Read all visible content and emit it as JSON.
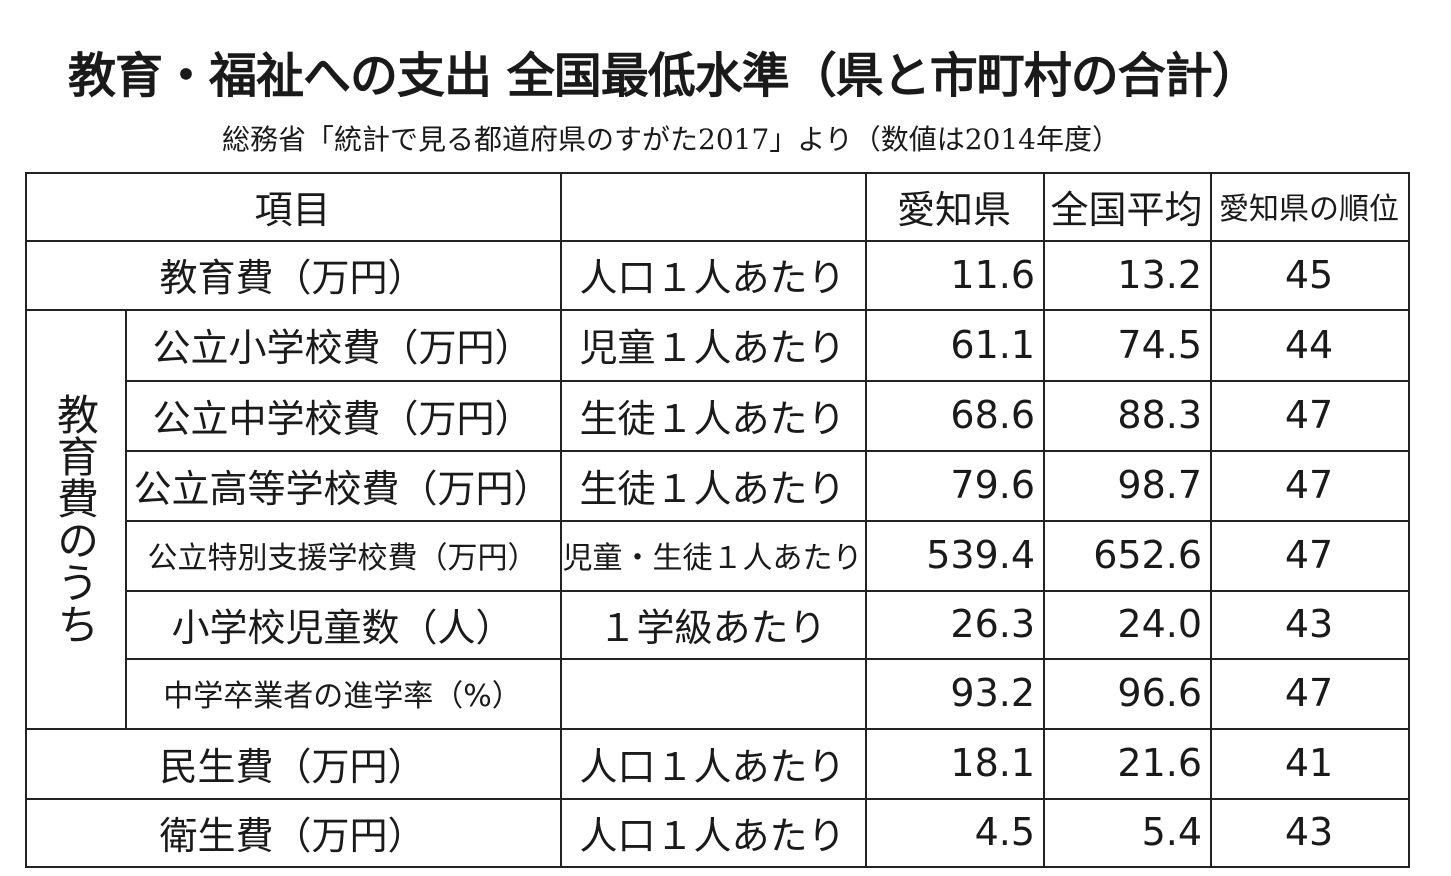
{
  "title": "教育・福祉への支出 全国最低水準（県と市町村の合計）",
  "subtitle": "総務省「統計で見る都道府県のすがた2017」より（数値は2014年度）",
  "table": {
    "header": {
      "item": "項目",
      "aichi": "愛知県",
      "national": "全国平均",
      "rank": "愛知県の順位"
    },
    "group_label": "教育費のうち",
    "rows": [
      {
        "item": "教育費（万円）",
        "unit": "人口１人あたり",
        "aichi": "11.6",
        "national": "13.2",
        "rank": "45"
      },
      {
        "item": "公立小学校費（万円）",
        "unit": "児童１人あたり",
        "aichi": "61.1",
        "national": "74.5",
        "rank": "44"
      },
      {
        "item": "公立中学校費（万円）",
        "unit": "生徒１人あたり",
        "aichi": "68.6",
        "national": "88.3",
        "rank": "47"
      },
      {
        "item": "公立高等学校費（万円）",
        "unit": "生徒１人あたり",
        "aichi": "79.6",
        "national": "98.7",
        "rank": "47"
      },
      {
        "item": "公立特別支援学校費（万円）",
        "unit": "児童・生徒１人あたり",
        "aichi": "539.4",
        "national": "652.6",
        "rank": "47"
      },
      {
        "item": "小学校児童数（人）",
        "unit": "１学級あたり",
        "aichi": "26.3",
        "national": "24.0",
        "rank": "43"
      },
      {
        "item": "中学卒業者の進学率（%）",
        "aichi": "93.2",
        "national": "96.6",
        "rank": "47"
      },
      {
        "item": "民生費（万円）",
        "unit": "人口１人あたり",
        "aichi": "18.1",
        "national": "21.6",
        "rank": "41"
      },
      {
        "item": "衛生費（万円）",
        "unit": "人口１人あたり",
        "aichi": "4.5",
        "national": "5.4",
        "rank": "43"
      }
    ]
  }
}
